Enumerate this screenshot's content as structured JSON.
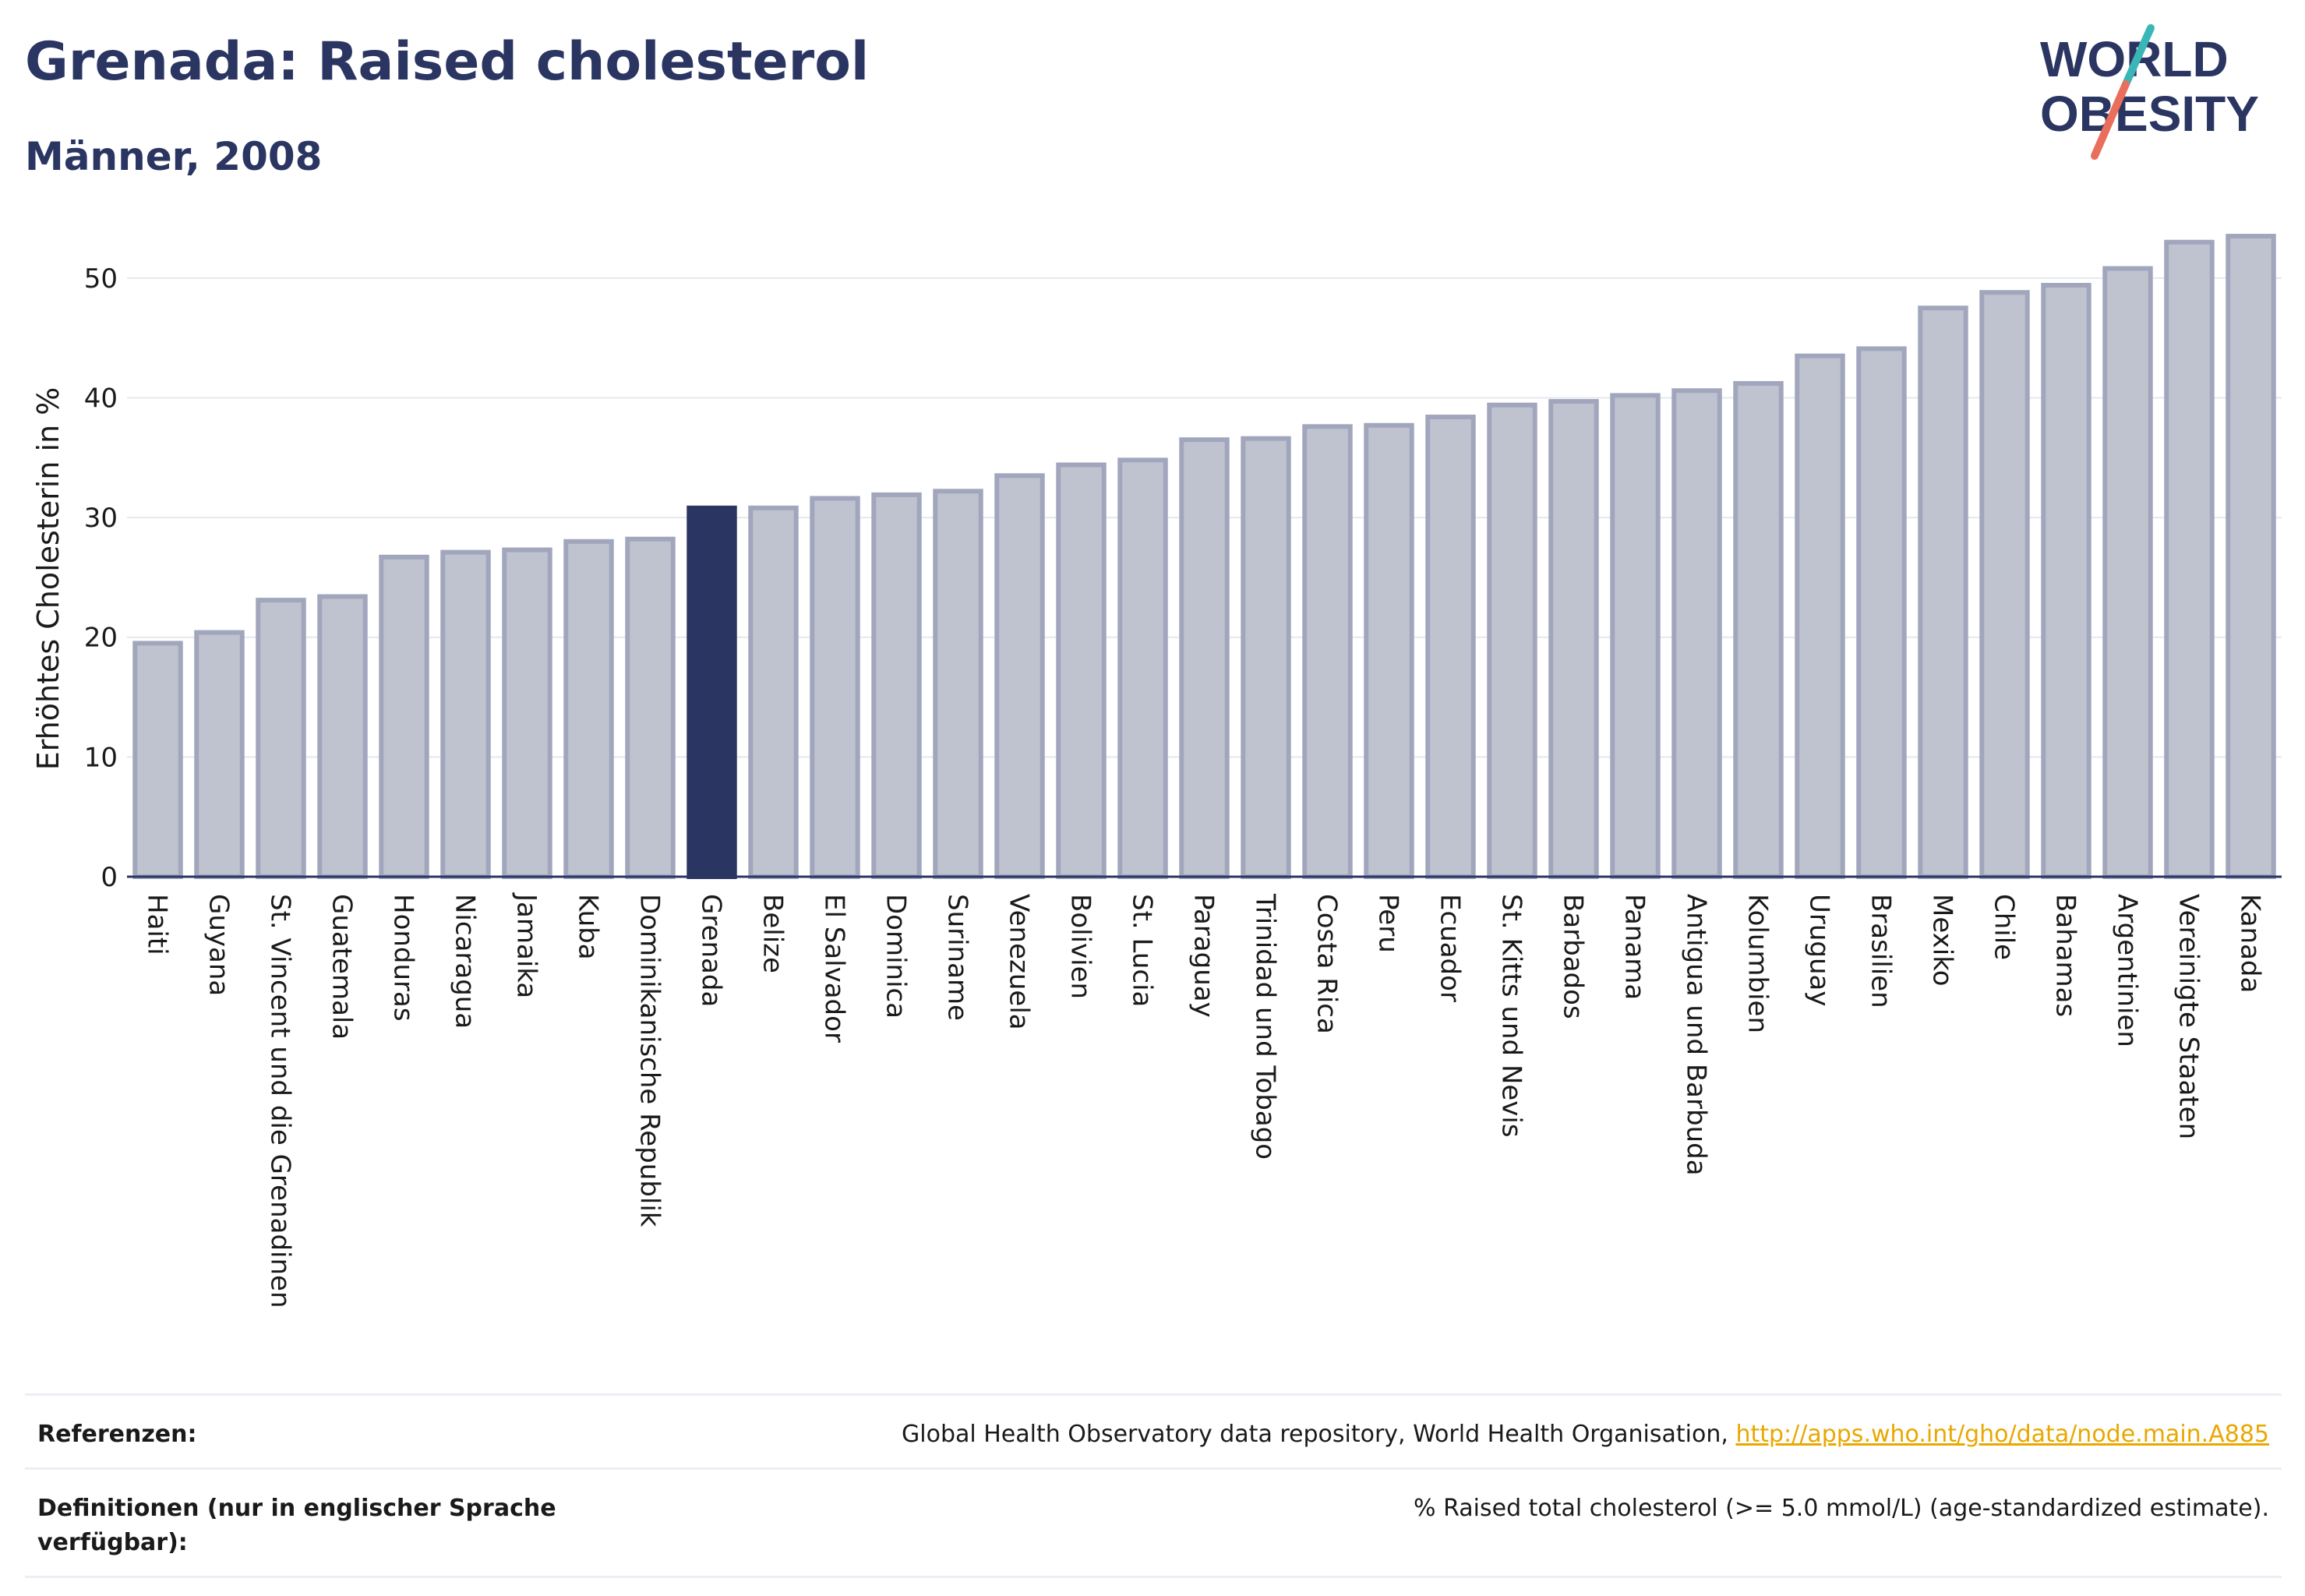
{
  "header": {
    "title": "Grenada: Raised cholesterol",
    "subtitle": "Männer, 2008"
  },
  "logo": {
    "line1": "WORLD",
    "line2": "OBESITY",
    "colors": [
      "#2b3562",
      "#3bb6b6",
      "#e96e5b"
    ]
  },
  "chart_data": {
    "type": "bar",
    "title": "Grenada: Raised cholesterol",
    "subtitle": "Männer, 2008",
    "xlabel": "",
    "ylabel": "Erhöhtes Cholesterin in %",
    "ylim": [
      0,
      55
    ],
    "yticks": [
      0,
      10,
      20,
      30,
      40,
      50
    ],
    "grid": true,
    "highlight": "Grenada",
    "colors": {
      "bar": "#bfc3d0",
      "bar_stroke": "#a1a6bd",
      "highlight": "#2b3562"
    },
    "categories": [
      "Haiti",
      "Guyana",
      "St. Vincent und die Grenadinen",
      "Guatemala",
      "Honduras",
      "Nicaragua",
      "Jamaika",
      "Kuba",
      "Dominikanische Republik",
      "Grenada",
      "Belize",
      "El Salvador",
      "Dominica",
      "Suriname",
      "Venezuela",
      "Bolivien",
      "St. Lucia",
      "Paraguay",
      "Trinidad und Tobago",
      "Costa Rica",
      "Peru",
      "Ecuador",
      "St. Kitts und Nevis",
      "Barbados",
      "Panama",
      "Antigua und Barbuda",
      "Kolumbien",
      "Uruguay",
      "Brasilien",
      "Mexiko",
      "Chile",
      "Bahamas",
      "Argentinien",
      "Vereinigte Staaten",
      "Kanada"
    ],
    "values": [
      19.5,
      20.4,
      23.1,
      23.4,
      26.7,
      27.1,
      27.3,
      28.0,
      28.2,
      30.8,
      30.8,
      31.6,
      31.9,
      32.2,
      33.5,
      34.4,
      34.8,
      36.5,
      36.6,
      37.6,
      37.7,
      38.4,
      39.4,
      39.7,
      40.2,
      40.6,
      41.2,
      43.5,
      44.1,
      47.5,
      48.8,
      49.4,
      50.8,
      53.0,
      53.5
    ]
  },
  "footer": {
    "references_label": "Referenzen:",
    "references_text": "Global Health Observatory data repository, World Health Organisation, ",
    "references_link": "http://apps.who.int/gho/data/node.main.A885",
    "definitions_label": "Definitionen (nur in englischer Sprache verfügbar):",
    "definitions_text": "% Raised total cholesterol (>= 5.0 mmol/L) (age-standardized estimate)."
  }
}
